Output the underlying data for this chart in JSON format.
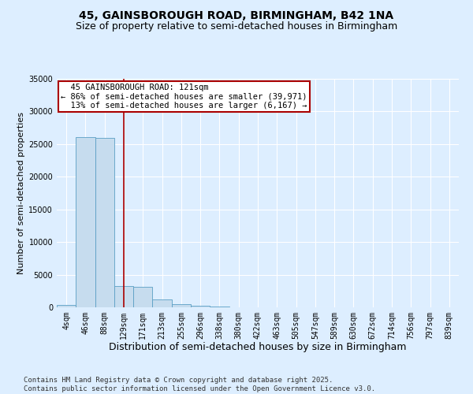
{
  "title1": "45, GAINSBOROUGH ROAD, BIRMINGHAM, B42 1NA",
  "title2": "Size of property relative to semi-detached houses in Birmingham",
  "xlabel": "Distribution of semi-detached houses by size in Birmingham",
  "ylabel": "Number of semi-detached properties",
  "bins": [
    "4sqm",
    "46sqm",
    "88sqm",
    "129sqm",
    "171sqm",
    "213sqm",
    "255sqm",
    "296sqm",
    "338sqm",
    "380sqm",
    "422sqm",
    "463sqm",
    "505sqm",
    "547sqm",
    "589sqm",
    "630sqm",
    "672sqm",
    "714sqm",
    "756sqm",
    "797sqm",
    "839sqm"
  ],
  "values": [
    350,
    26100,
    26000,
    3200,
    3150,
    1200,
    480,
    280,
    80,
    30,
    15,
    8,
    5,
    3,
    2,
    1,
    1,
    1,
    0,
    0,
    0
  ],
  "bar_color": "#c6dcee",
  "bar_edge_color": "#5a9fc4",
  "vline_x_index": 3,
  "vline_color": "#aa0000",
  "annotation_text": "  45 GAINSBOROUGH ROAD: 121sqm\n← 86% of semi-detached houses are smaller (39,971)\n  13% of semi-detached houses are larger (6,167) →",
  "annotation_box_color": "white",
  "annotation_box_edge_color": "#aa0000",
  "ylim": [
    0,
    35000
  ],
  "yticks": [
    0,
    5000,
    10000,
    15000,
    20000,
    25000,
    30000,
    35000
  ],
  "footnote": "Contains HM Land Registry data © Crown copyright and database right 2025.\nContains public sector information licensed under the Open Government Licence v3.0.",
  "bg_color": "#ddeeff",
  "plot_bg_color": "#ddeeff",
  "title1_fontsize": 10,
  "title2_fontsize": 9,
  "xlabel_fontsize": 9,
  "ylabel_fontsize": 8,
  "tick_fontsize": 7,
  "annotation_fontsize": 7.5,
  "footnote_fontsize": 6.5
}
